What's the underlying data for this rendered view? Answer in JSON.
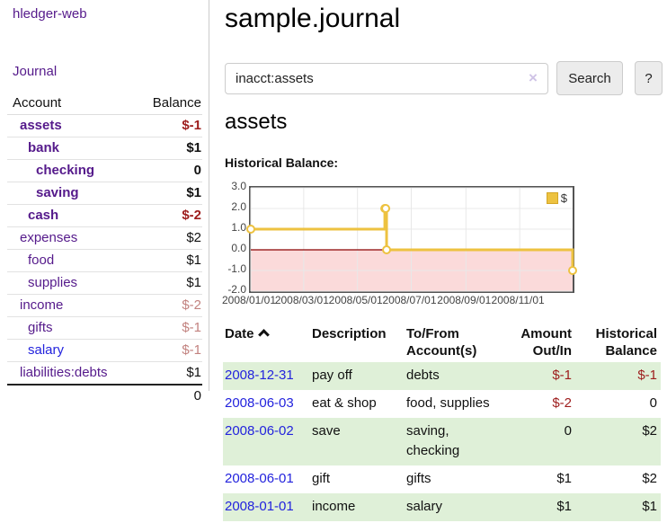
{
  "app": {
    "title": "hledger-web",
    "nav_journal": "Journal"
  },
  "colors": {
    "link_purple": "#551a8b",
    "link_blue": "#2323dd",
    "negative_strong": "#9d1c1c",
    "negative_muted": "#c2827f",
    "row_stripe_green": "#dff0d8",
    "series_yellow": "#edc240",
    "zero_line_red": "#8b0000",
    "negative_region_pink": "#fbdada"
  },
  "sidebar": {
    "headers": {
      "account": "Account",
      "balance": "Balance"
    },
    "accounts": [
      {
        "name": "assets",
        "balance": "$-1",
        "indent": 1,
        "bold": true,
        "balance_class": "neg",
        "link_color": "purple"
      },
      {
        "name": "bank",
        "balance": "$1",
        "indent": 2,
        "bold": true,
        "balance_class": "",
        "link_color": "purple"
      },
      {
        "name": "checking",
        "balance": "0",
        "indent": 3,
        "bold": true,
        "balance_class": "",
        "link_color": "purple"
      },
      {
        "name": "saving",
        "balance": "$1",
        "indent": 3,
        "bold": true,
        "balance_class": "",
        "link_color": "purple"
      },
      {
        "name": "cash",
        "balance": "$-2",
        "indent": 2,
        "bold": true,
        "balance_class": "neg",
        "link_color": "purple"
      },
      {
        "name": "expenses",
        "balance": "$2",
        "indent": 1,
        "bold": false,
        "balance_class": "",
        "link_color": "purple"
      },
      {
        "name": "food",
        "balance": "$1",
        "indent": 2,
        "bold": false,
        "balance_class": "",
        "link_color": "purple"
      },
      {
        "name": "supplies",
        "balance": "$1",
        "indent": 2,
        "bold": false,
        "balance_class": "",
        "link_color": "purple"
      },
      {
        "name": "income",
        "balance": "$-2",
        "indent": 1,
        "bold": false,
        "balance_class": "negm",
        "link_color": "purple"
      },
      {
        "name": "gifts",
        "balance": "$-1",
        "indent": 2,
        "bold": false,
        "balance_class": "negm",
        "link_color": "purple"
      },
      {
        "name": "salary",
        "balance": "$-1",
        "indent": 2,
        "bold": false,
        "balance_class": "negm",
        "link_color": "blue"
      },
      {
        "name": "liabilities:debts",
        "balance": "$1",
        "indent": 1,
        "bold": false,
        "balance_class": "",
        "link_color": "purple"
      }
    ],
    "total": "0"
  },
  "main": {
    "title": "sample.journal",
    "search": {
      "value": "inacct:assets",
      "clear_label": "×",
      "search_button": "Search",
      "help_button": "?"
    },
    "account_heading": "assets",
    "chart_label": "Historical Balance:"
  },
  "icons": {
    "sort_ascending": "chevron-up",
    "clear_search": "×"
  },
  "chart_data": {
    "type": "line",
    "step": true,
    "title": "Historical Balance",
    "series": [
      {
        "name": "$",
        "color": "#edc240",
        "points": [
          [
            "2008/01/01",
            1.0
          ],
          [
            "2008/06/01",
            2.0
          ],
          [
            "2008/06/02",
            2.0
          ],
          [
            "2008/06/03",
            0.0
          ],
          [
            "2008/12/31",
            -1.0
          ]
        ]
      }
    ],
    "x_ticks": [
      "2008/01/01",
      "2008/03/01",
      "2008/05/01",
      "2008/07/01",
      "2008/09/01",
      "2008/11/01"
    ],
    "y_ticks": [
      3.0,
      2.0,
      1.0,
      0.0,
      -1.0,
      -2.0
    ],
    "xlim": [
      "2008/01/01",
      "2008/12/31"
    ],
    "ylim": [
      -2.0,
      3.0
    ],
    "grid": true,
    "legend": {
      "label": "$",
      "position": "top-right"
    },
    "negative_region_shaded": true,
    "zero_line_color": "#8b0000"
  },
  "register": {
    "headers": {
      "date": "Date",
      "description": "Description",
      "accounts": "To/From Account(s)",
      "amount": "Amount Out/In",
      "balance": "Historical Balance"
    },
    "rows": [
      {
        "date": "2008-12-31",
        "description": "pay off",
        "accounts": [
          "debts"
        ],
        "amount": "$-1",
        "amount_class": "neg",
        "balance": "$-1",
        "balance_class": "neg"
      },
      {
        "date": "2008-06-03",
        "description": "eat & shop",
        "accounts": [
          "food, supplies"
        ],
        "amount": "$-2",
        "amount_class": "neg",
        "balance": "0",
        "balance_class": ""
      },
      {
        "date": "2008-06-02",
        "description": "save",
        "accounts": [
          "saving,",
          "checking"
        ],
        "amount": "0",
        "amount_class": "",
        "balance": "$2",
        "balance_class": ""
      },
      {
        "date": "2008-06-01",
        "description": "gift",
        "accounts": [
          "gifts"
        ],
        "amount": "$1",
        "amount_class": "",
        "balance": "$2",
        "balance_class": ""
      },
      {
        "date": "2008-01-01",
        "description": "income",
        "accounts": [
          "salary"
        ],
        "amount": "$1",
        "amount_class": "",
        "balance": "$1",
        "balance_class": ""
      }
    ]
  }
}
